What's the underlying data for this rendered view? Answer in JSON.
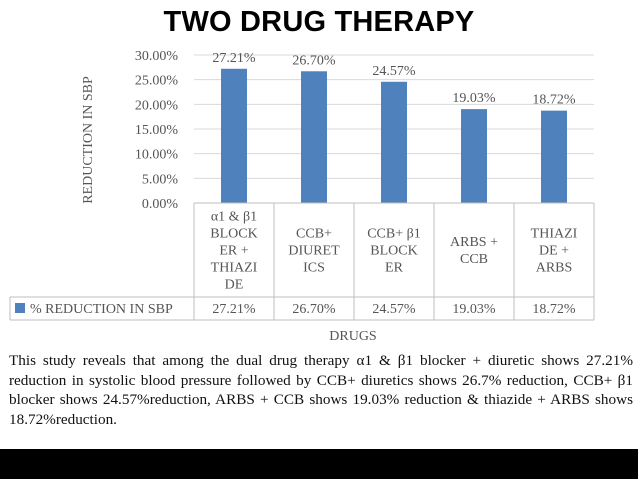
{
  "slide": {
    "title": "TWO DRUG THERAPY",
    "caption": "This study reveals that among the dual drug therapy α1 & β1 blocker + diuretic shows 27.21% reduction in systolic blood pressure followed by CCB+ diuretics shows 26.7% reduction, CCB+ β1 blocker shows 24.57%reduction, ARBS + CCB shows 19.03% reduction & thiazide + ARBS shows 18.72%reduction."
  },
  "colors": {
    "bar": "#4f81bd",
    "grid": "#d9d9d9",
    "table_border": "#bfbfbf",
    "footer": "#000000"
  },
  "chart_data": {
    "type": "bar",
    "categories": [
      [
        "α1 & β1",
        "BLOCK",
        "ER +",
        "THIAZI",
        "DE"
      ],
      [
        "CCB+",
        "DIURET",
        "ICS"
      ],
      [
        "CCB+ β1",
        "BLOCK",
        "ER"
      ],
      [
        "ARBS +",
        "CCB"
      ],
      [
        "THIAZI",
        "DE +",
        "ARBS"
      ]
    ],
    "series": [
      {
        "name": "% REDUCTION IN SBP",
        "values": [
          27.21,
          26.7,
          24.57,
          19.03,
          18.72
        ]
      }
    ],
    "data_labels": [
      "27.21%",
      "26.70%",
      "24.57%",
      "19.03%",
      "18.72%"
    ],
    "y_ticks": [
      "0.00%",
      "5.00%",
      "10.00%",
      "15.00%",
      "20.00%",
      "25.00%",
      "30.00%"
    ],
    "ylim": [
      0,
      30
    ],
    "xlabel": "DRUGS",
    "ylabel": "REDUCTION IN SBP",
    "grid": true,
    "legend": "data-table"
  }
}
